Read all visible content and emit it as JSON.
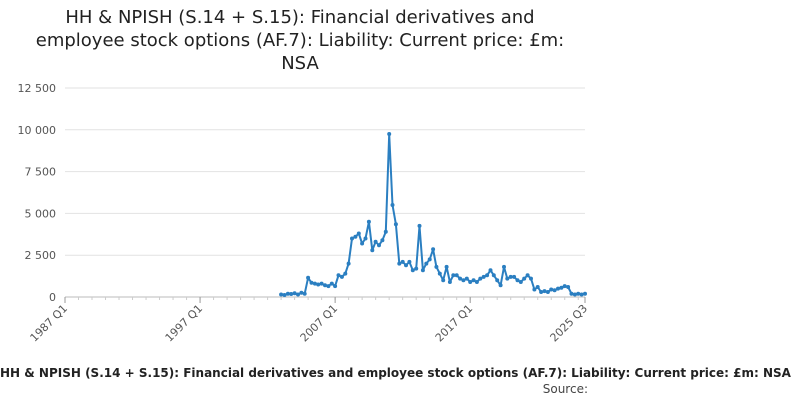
{
  "chart_data": {
    "type": "line",
    "title": "HH & NPISH (S.14 + S.15): Financial derivatives and employee stock options (AF.7): Liability: Current price: £m: NSA",
    "legend_label": "HH & NPISH (S.14 + S.15): Financial derivatives and employee stock options (AF.7): Liability: Current price: £m: NSA",
    "source_label": "Source:",
    "ylim": [
      0,
      12500
    ],
    "yticks": [
      0,
      2500,
      5000,
      7500,
      10000,
      12500
    ],
    "ytick_labels": [
      "0",
      "2 500",
      "5 000",
      "7 500",
      "10 000",
      "12 500"
    ],
    "xlim": [
      1987.0,
      2025.5
    ],
    "xticks": [
      1987.0,
      1997.0,
      2007.0,
      2017.0,
      2025.5
    ],
    "xtick_labels": [
      "1987 Q1",
      "1997 Q1",
      "2007 Q1",
      "2017 Q1",
      "2025 Q3"
    ],
    "grid": true,
    "color": "#2b7fc1",
    "series": [
      {
        "x": [
          2003.0,
          2003.25,
          2003.5,
          2003.75,
          2004.0,
          2004.25,
          2004.5,
          2004.75,
          2005.0,
          2005.25,
          2005.5,
          2005.75,
          2006.0,
          2006.25,
          2006.5,
          2006.75,
          2007.0,
          2007.25,
          2007.5,
          2007.75,
          2008.0,
          2008.25,
          2008.5,
          2008.75,
          2009.0,
          2009.25,
          2009.5,
          2009.75,
          2010.0,
          2010.25,
          2010.5,
          2010.75,
          2011.0,
          2011.25,
          2011.5,
          2011.75,
          2012.0,
          2012.25,
          2012.5,
          2012.75,
          2013.0,
          2013.25,
          2013.5,
          2013.75,
          2014.0,
          2014.25,
          2014.5,
          2014.75,
          2015.0,
          2015.25,
          2015.5,
          2015.75,
          2016.0,
          2016.25,
          2016.5,
          2016.75,
          2017.0,
          2017.25,
          2017.5,
          2017.75,
          2018.0,
          2018.25,
          2018.5,
          2018.75,
          2019.0,
          2019.25,
          2019.5,
          2019.75,
          2020.0,
          2020.25,
          2020.5,
          2020.75,
          2021.0,
          2021.25,
          2021.5,
          2021.75,
          2022.0,
          2022.25,
          2022.5,
          2022.75,
          2023.0,
          2023.25,
          2023.5,
          2023.75,
          2024.0,
          2024.25,
          2024.5,
          2024.75,
          2025.0,
          2025.25,
          2025.5
        ],
        "y": [
          150,
          120,
          200,
          180,
          220,
          150,
          250,
          200,
          1150,
          850,
          800,
          750,
          800,
          700,
          650,
          800,
          650,
          1300,
          1200,
          1400,
          2000,
          3500,
          3600,
          3800,
          3200,
          3500,
          4500,
          2800,
          3300,
          3100,
          3400,
          3900,
          9750,
          5500,
          4350,
          2000,
          2100,
          1900,
          2100,
          1600,
          1700,
          4250,
          1600,
          2000,
          2250,
          2850,
          1800,
          1400,
          1000,
          1800,
          900,
          1300,
          1300,
          1100,
          1000,
          1100,
          900,
          1000,
          900,
          1100,
          1200,
          1300,
          1600,
          1300,
          1000,
          700,
          1800,
          1100,
          1200,
          1200,
          1000,
          900,
          1100,
          1300,
          1100,
          450,
          600,
          300,
          350,
          300,
          450,
          400,
          500,
          550,
          650,
          600,
          200,
          150,
          200,
          150,
          200
        ]
      }
    ]
  }
}
